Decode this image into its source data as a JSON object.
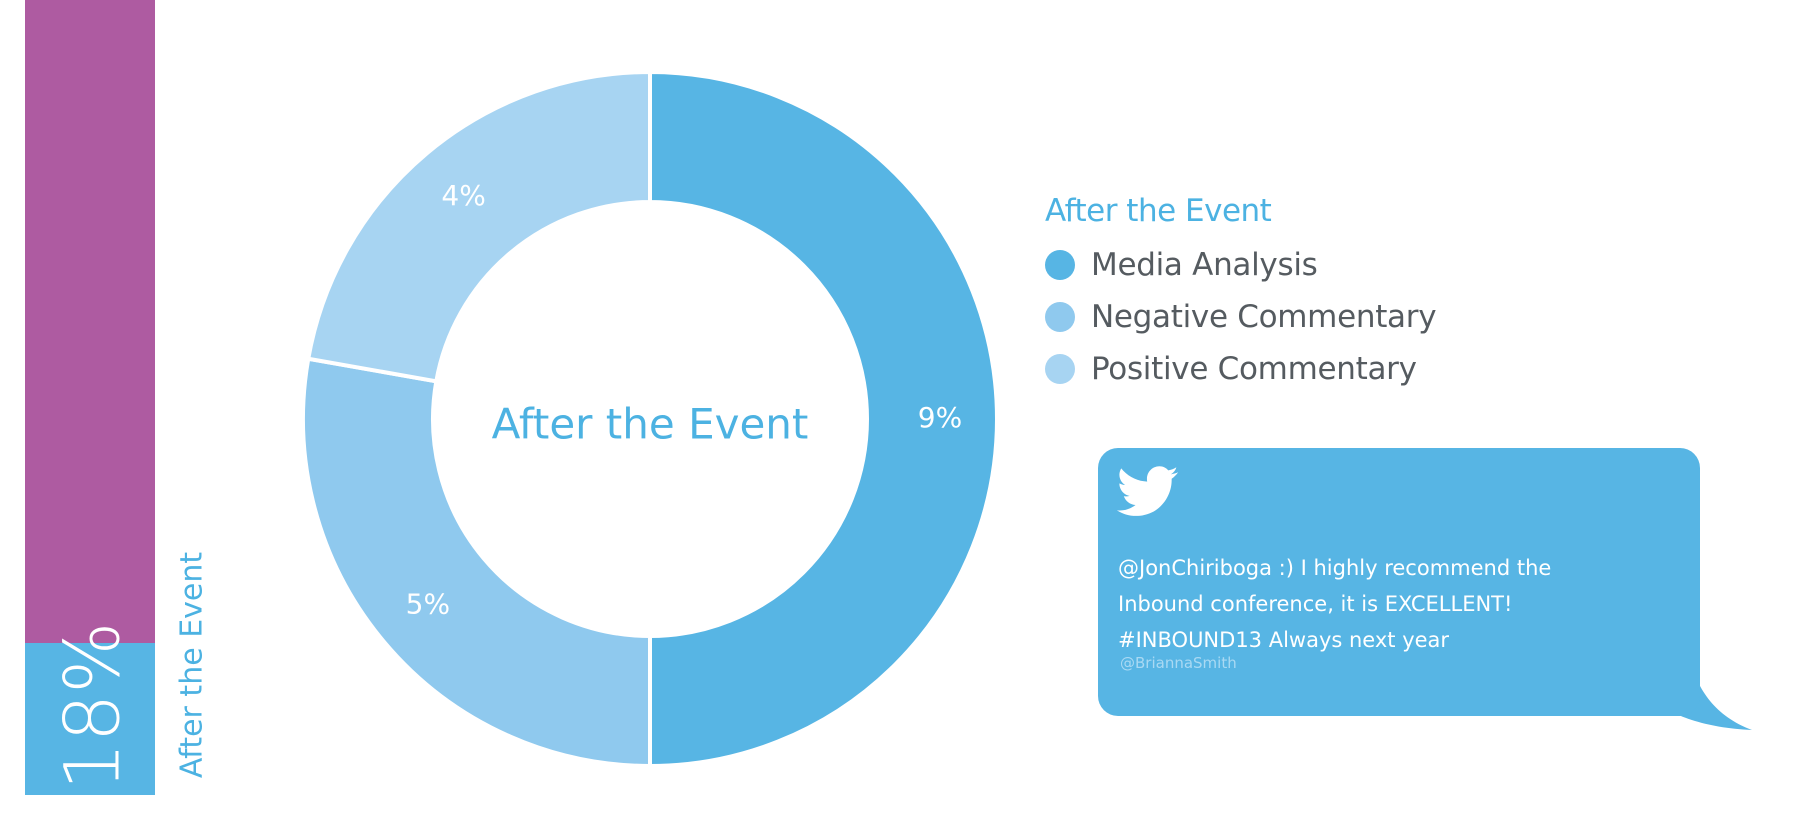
{
  "colors": {
    "bar_top": "#ae5ba1",
    "accent": "#57b5e4",
    "text_accent": "#4cb2e2",
    "media": "#57b5e4",
    "negative": "#8fc9ee",
    "positive": "#a7d4f2",
    "legend_text": "#555b60",
    "tweet_bg": "#57b5e4",
    "tweet_handle": "#a9d9f3"
  },
  "side_bar": {
    "percent_label": "18%",
    "label": "After the Event",
    "value": 18
  },
  "chart_data": {
    "type": "pie",
    "donut": true,
    "title": "",
    "center_label": "After the Event",
    "slices": [
      {
        "name": "Media Analysis",
        "value": 9,
        "label": "9%",
        "color": "#57b5e4"
      },
      {
        "name": "Negative Commentary",
        "value": 5,
        "label": "5%",
        "color": "#8fc9ee"
      },
      {
        "name": "Positive Commentary",
        "value": 4,
        "label": "4%",
        "color": "#a7d4f2"
      }
    ],
    "legend": {
      "title": "After the Event",
      "placement": "right",
      "entries": [
        "Media Analysis",
        "Negative Commentary",
        "Positive Commentary"
      ]
    }
  },
  "tweet": {
    "icon": "twitter-bird-icon",
    "lines": [
      "@JonChiriboga :) I highly recommend the",
      "Inbound conference, it is EXCELLENT!",
      "#INBOUND13 Always next year"
    ],
    "handle": "@BriannaSmith"
  }
}
